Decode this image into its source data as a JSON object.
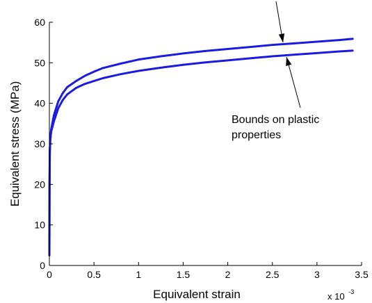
{
  "chart_data": {
    "type": "line",
    "xlabel": "Equivalent strain",
    "ylabel": "Equivalent stress (MPa)",
    "x_multiplier": {
      "base": "x 10",
      "exponent": "-3"
    },
    "xlim": [
      0,
      3.5
    ],
    "ylim": [
      0,
      60
    ],
    "xticks": [
      "0",
      "0.5",
      "1",
      "1.5",
      "2",
      "2.5",
      "3",
      "3.5"
    ],
    "yticks": [
      "0",
      "10",
      "20",
      "30",
      "40",
      "50",
      "60"
    ],
    "grid": false,
    "line_color": "#1a1ae0",
    "series": [
      {
        "x": [
          0,
          0.002,
          0.005,
          0.01,
          0.02,
          0.05,
          0.1,
          0.15,
          0.2,
          0.3,
          0.4,
          0.5,
          0.6,
          0.8,
          1.0,
          1.25,
          1.5,
          1.75,
          2.0,
          2.25,
          2.5,
          2.75,
          3.0,
          3.25,
          3.4
        ],
        "y": [
          2.5,
          20,
          28,
          31,
          33.5,
          37,
          40.5,
          42.5,
          44,
          45.5,
          46.8,
          47.8,
          48.7,
          49.8,
          50.8,
          51.6,
          52.3,
          52.9,
          53.4,
          53.9,
          54.4,
          54.8,
          55.2,
          55.6,
          55.9
        ]
      },
      {
        "x": [
          0,
          0.002,
          0.005,
          0.01,
          0.02,
          0.05,
          0.1,
          0.15,
          0.2,
          0.3,
          0.4,
          0.5,
          0.6,
          0.8,
          1.0,
          1.25,
          1.5,
          1.75,
          2.0,
          2.25,
          2.5,
          2.75,
          3.0,
          3.25,
          3.4
        ],
        "y": [
          2.5,
          20,
          28,
          31,
          33,
          35.5,
          38.8,
          40.8,
          42.2,
          43.8,
          44.8,
          45.5,
          46.2,
          47.2,
          48.0,
          48.8,
          49.5,
          50.1,
          50.6,
          51.1,
          51.6,
          52.0,
          52.4,
          52.8,
          53.0
        ]
      }
    ],
    "annotation": {
      "lines": [
        "Bounds on plastic",
        "properties"
      ]
    }
  }
}
